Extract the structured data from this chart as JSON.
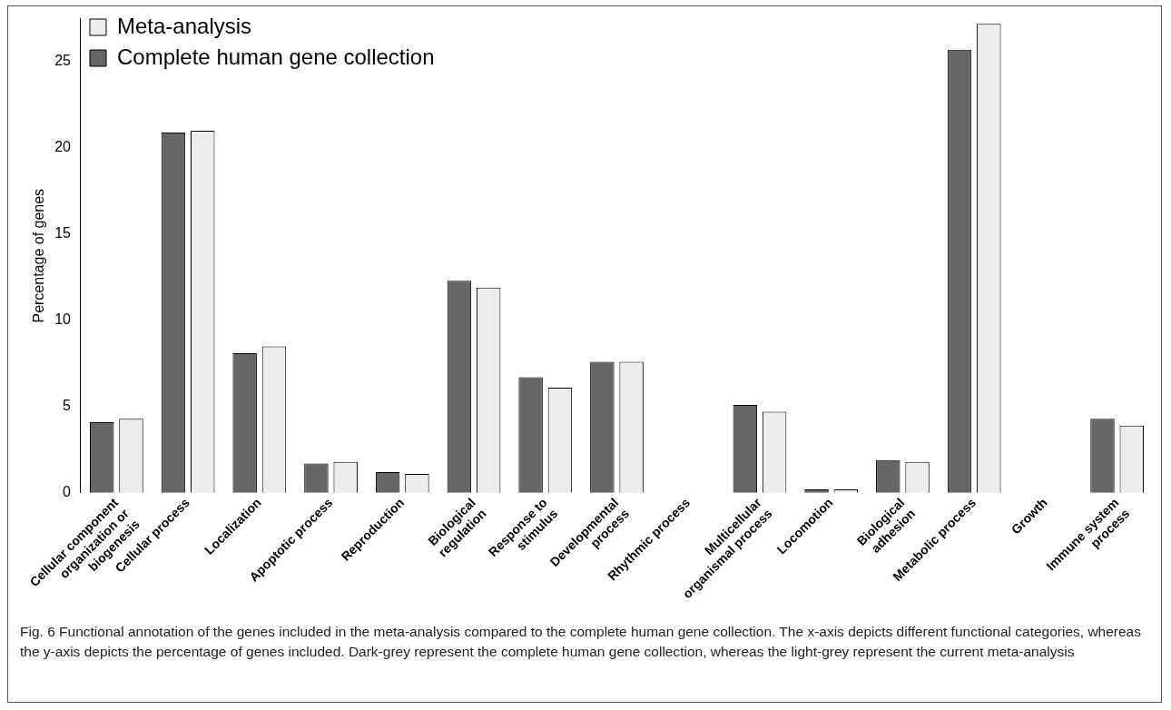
{
  "chart_data": {
    "type": "bar",
    "ylabel": "Percentage of genes",
    "categories": [
      "Cellular component organization or biogenesis",
      "Cellular process",
      "Localization",
      "Apoptotic process",
      "Reproduction",
      "Biological regulation",
      "Response to stimulus",
      "Developmental process",
      "Rhythmic process",
      "Multicellular organismal process",
      "Locomotion",
      "Biological adhesion",
      "Metabolic process",
      "Growth",
      "Immune system process"
    ],
    "series": [
      {
        "name": "Complete human gene collection",
        "color": "#666666",
        "values": [
          4.1,
          20.9,
          8.1,
          1.7,
          1.2,
          12.3,
          6.7,
          7.6,
          0,
          5.1,
          0.2,
          1.9,
          25.7,
          0,
          4.3
        ]
      },
      {
        "name": "Meta-analysis",
        "color": "#ececec",
        "values": [
          4.3,
          21.0,
          8.5,
          1.8,
          1.1,
          11.9,
          6.1,
          7.6,
          0,
          4.7,
          0.2,
          1.8,
          27.2,
          0,
          3.9
        ]
      }
    ],
    "ylim": [
      0,
      27.5
    ],
    "yticks": [
      0,
      5,
      10,
      15,
      20,
      25
    ],
    "grid": false,
    "legend": "top left",
    "annotations": [
      "Fig. 6 Functional annotation of the genes included in the meta-analysis compared to the complete human gene collection. The x-axis depicts different functional categories, whereas the y-axis depicts the percentage of genes included. Dark-grey represent the complete human gene collection, whereas the light-grey represent the current meta-analysis"
    ]
  }
}
